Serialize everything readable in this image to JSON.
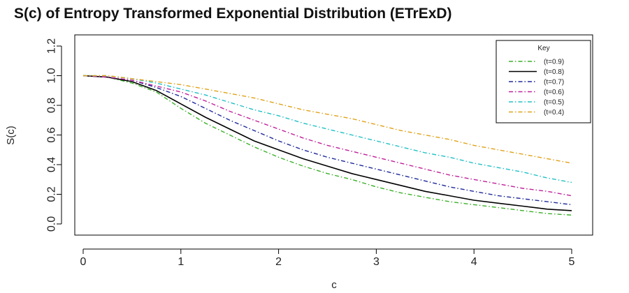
{
  "chart_data": {
    "type": "line",
    "title": "S(c) of Entropy Transformed Exponential Distribution (ETrExD)",
    "xlabel": "c",
    "ylabel": "S(c)",
    "xlim": [
      0,
      5
    ],
    "ylim": [
      0,
      1.2
    ],
    "xticks": [
      "0",
      "1",
      "2",
      "3",
      "4",
      "5"
    ],
    "yticks": [
      "0.0",
      "0.2",
      "0.4",
      "0.6",
      "0.8",
      "1.0",
      "1.2"
    ],
    "grid": false,
    "legend": {
      "title": "Key",
      "position": "top-right"
    },
    "x": [
      0,
      0.25,
      0.5,
      0.75,
      1,
      1.25,
      1.5,
      1.75,
      2,
      2.25,
      2.5,
      2.75,
      3,
      3.25,
      3.5,
      3.75,
      4,
      4.25,
      4.5,
      4.75,
      5
    ],
    "series": [
      {
        "name": "(t=0.9)",
        "color": "#3cb02a",
        "dash": "dotdash",
        "values": [
          1.0,
          0.99,
          0.95,
          0.89,
          0.78,
          0.68,
          0.6,
          0.52,
          0.45,
          0.39,
          0.34,
          0.3,
          0.25,
          0.21,
          0.18,
          0.15,
          0.13,
          0.11,
          0.09,
          0.07,
          0.06
        ]
      },
      {
        "name": "(t=0.8)",
        "color": "#000000",
        "dash": "solid",
        "values": [
          1.0,
          0.99,
          0.96,
          0.9,
          0.81,
          0.72,
          0.64,
          0.56,
          0.5,
          0.44,
          0.39,
          0.34,
          0.3,
          0.26,
          0.22,
          0.19,
          0.16,
          0.14,
          0.12,
          0.1,
          0.09
        ]
      },
      {
        "name": "(t=0.7)",
        "color": "#1f2a99",
        "dash": "dotdash",
        "values": [
          1.0,
          0.99,
          0.97,
          0.92,
          0.86,
          0.78,
          0.7,
          0.63,
          0.56,
          0.5,
          0.45,
          0.41,
          0.37,
          0.33,
          0.29,
          0.25,
          0.22,
          0.19,
          0.17,
          0.15,
          0.13
        ]
      },
      {
        "name": "(t=0.6)",
        "color": "#c0219a",
        "dash": "dotdash",
        "values": [
          1.0,
          0.99,
          0.97,
          0.93,
          0.89,
          0.83,
          0.76,
          0.7,
          0.64,
          0.58,
          0.53,
          0.49,
          0.45,
          0.41,
          0.37,
          0.33,
          0.3,
          0.27,
          0.24,
          0.22,
          0.19
        ]
      },
      {
        "name": "(t=0.5)",
        "color": "#22c0c6",
        "dash": "dotdash",
        "values": [
          1.0,
          1.0,
          0.98,
          0.95,
          0.91,
          0.87,
          0.82,
          0.77,
          0.73,
          0.68,
          0.64,
          0.6,
          0.56,
          0.52,
          0.48,
          0.45,
          0.41,
          0.38,
          0.35,
          0.31,
          0.28
        ]
      },
      {
        "name": "(t=0.4)",
        "color": "#e0a21a",
        "dash": "dotdash",
        "values": [
          1.0,
          1.0,
          0.98,
          0.96,
          0.94,
          0.91,
          0.88,
          0.85,
          0.81,
          0.77,
          0.74,
          0.71,
          0.67,
          0.63,
          0.6,
          0.57,
          0.53,
          0.5,
          0.47,
          0.44,
          0.41
        ]
      }
    ]
  }
}
